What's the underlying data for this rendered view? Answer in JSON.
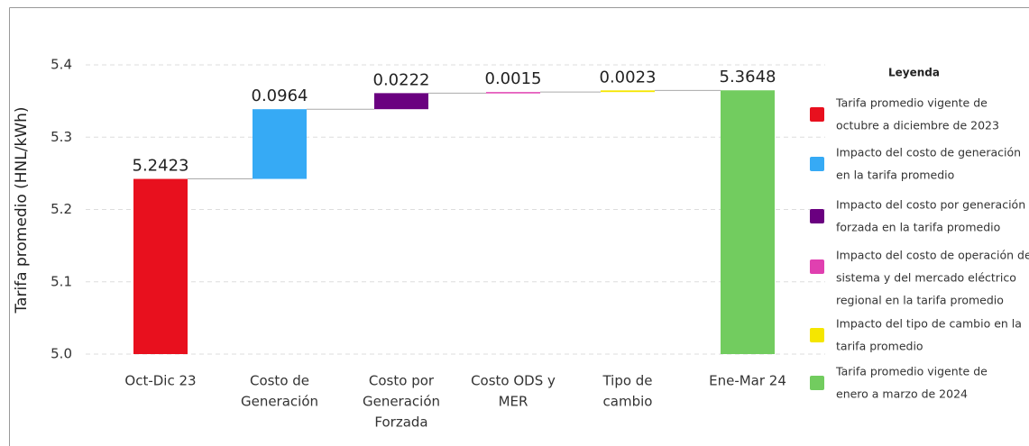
{
  "chart_data": {
    "type": "waterfall",
    "y_label": "Tarifa promedio (HNL/kWh)",
    "categories": [
      [
        "Oct-Dic 23"
      ],
      [
        "Costo de",
        "Generación"
      ],
      [
        "Costo por",
        "Generación",
        "Forzada"
      ],
      [
        "Costo ODS y",
        "MER"
      ],
      [
        "Tipo de",
        "cambio"
      ],
      [
        "Ene-Mar 24"
      ]
    ],
    "values": [
      5.2423,
      0.0964,
      0.0222,
      0.0015,
      0.0023,
      5.3648
    ],
    "measures": [
      "total",
      "relative",
      "relative",
      "relative",
      "relative",
      "total"
    ],
    "colors": [
      "#e8101e",
      "#36aaf5",
      "#6a0080",
      "#e040b0",
      "#f5e600",
      "#72cc5f"
    ],
    "ylim": [
      5,
      5.4
    ],
    "yticks": [
      {
        "value": 5,
        "label": "5.0"
      },
      5.1,
      5.2,
      5.3,
      5.4
    ],
    "grid": true,
    "legend": {
      "title": "Leyenda",
      "position": "right",
      "entries": [
        [
          "Tarifa promedio vigente de",
          "octubre a diciembre de 2023"
        ],
        [
          "Impacto del costo de generación",
          "en la tarifa promedio"
        ],
        [
          "Impacto del costo por generación",
          "forzada en la tarifa promedio"
        ],
        [
          "Impacto del costo de operación de",
          "sistema y del mercado eléctrico",
          "regional en la tarifa promedio"
        ],
        [
          "Impacto del tipo de cambio en la",
          "tarifa promedio"
        ],
        [
          "Tarifa promedio vigente de",
          "enero a marzo de 2024"
        ]
      ]
    }
  }
}
